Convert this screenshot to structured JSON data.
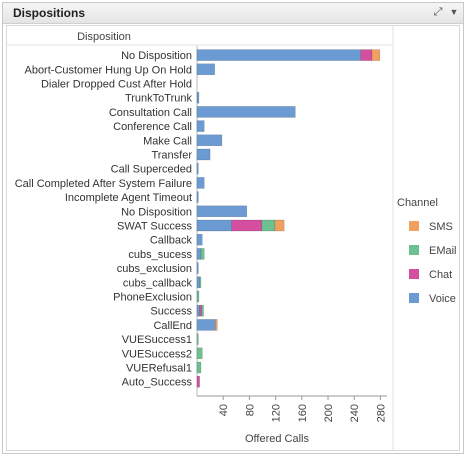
{
  "panel": {
    "title": "Dispositions"
  },
  "chart_data": {
    "type": "bar",
    "orientation": "horizontal",
    "stacked": true,
    "category_header": "Disposition",
    "xlabel": "Offered Calls",
    "xlim": [
      0,
      290
    ],
    "xticks": [
      40,
      80,
      120,
      160,
      200,
      240,
      280
    ],
    "legend_title": "Channel",
    "legend_position": "right",
    "categories": [
      "No Disposition",
      "Abort-Customer Hung Up On Hold",
      "Dialer Dropped Cust After Hold",
      "TrunkToTrunk",
      "Consultation Call",
      "Conference Call",
      "Make Call",
      "Transfer",
      "Call Superceded",
      "Call Completed After System Failure",
      "Incomplete Agent Timeout",
      "No Disposition",
      "SWAT Success",
      "Callback",
      "cubs_sucess",
      "cubs_exclusion",
      "cubs_callback",
      "PhoneExclusion",
      "Success",
      "CallEnd",
      "VUESuccess1",
      "VUESuccess2",
      "VUERefusal1",
      "Auto_Success"
    ],
    "series": [
      {
        "name": "Voice",
        "color": "#6b9bd2",
        "values": [
          250,
          27,
          0,
          3,
          150,
          11,
          38,
          20,
          2,
          11,
          2,
          76,
          53,
          8,
          6,
          2,
          4,
          0,
          4,
          28,
          0,
          0,
          0,
          0
        ]
      },
      {
        "name": "Chat",
        "color": "#d44f9f",
        "values": [
          17,
          0,
          0,
          0,
          0,
          0,
          0,
          0,
          0,
          0,
          0,
          0,
          46,
          0,
          0,
          0,
          0,
          0,
          3,
          0,
          0,
          0,
          0,
          4
        ]
      },
      {
        "name": "EMail",
        "color": "#6dc08f",
        "values": [
          0,
          0,
          0,
          0,
          0,
          0,
          0,
          0,
          0,
          0,
          0,
          0,
          20,
          0,
          5,
          0,
          2,
          3,
          3,
          0,
          2,
          8,
          6,
          0
        ]
      },
      {
        "name": "SMS",
        "color": "#f0a060",
        "values": [
          12,
          0,
          0,
          0,
          0,
          0,
          0,
          0,
          0,
          0,
          0,
          0,
          14,
          0,
          0,
          0,
          0,
          0,
          0,
          3,
          0,
          0,
          0,
          0
        ]
      }
    ],
    "legend_order": [
      "SMS",
      "EMail",
      "Chat",
      "Voice"
    ]
  }
}
